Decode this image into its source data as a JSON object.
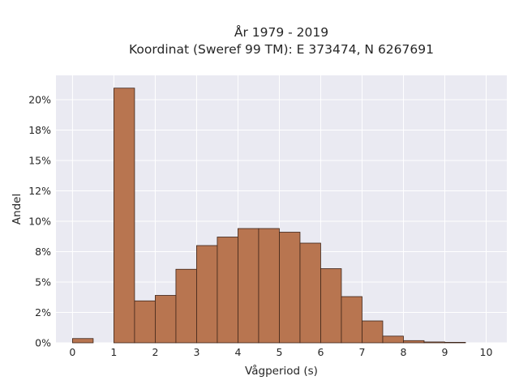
{
  "chart_data": {
    "type": "bar",
    "title_lines": [
      "År 1979 - 2019",
      "Koordinat (Sweref 99 TM): E 373474, N 6267691"
    ],
    "xlabel": "Vågperiod (s)",
    "ylabel": "Andel",
    "x_ticks": [
      "0",
      "1",
      "2",
      "3",
      "4",
      "5",
      "6",
      "7",
      "8",
      "9",
      "10"
    ],
    "y_ticks": [
      "0%",
      "2%",
      "5%",
      "8%",
      "10%",
      "12%",
      "15%",
      "18%",
      "20%"
    ],
    "y_tick_values": [
      0,
      0.025,
      0.05,
      0.075,
      0.1,
      0.125,
      0.15,
      0.175,
      0.2
    ],
    "xlim": [
      -0.4,
      10.5
    ],
    "ylim": [
      0,
      0.22
    ],
    "bin_width": 0.5,
    "bins": [
      {
        "x0": 0.0,
        "value": 0.0035
      },
      {
        "x0": 0.5,
        "value": 0.0
      },
      {
        "x0": 1.0,
        "value": 0.2095
      },
      {
        "x0": 1.5,
        "value": 0.0345
      },
      {
        "x0": 2.0,
        "value": 0.039
      },
      {
        "x0": 2.5,
        "value": 0.0605
      },
      {
        "x0": 3.0,
        "value": 0.08
      },
      {
        "x0": 3.5,
        "value": 0.087
      },
      {
        "x0": 4.0,
        "value": 0.094
      },
      {
        "x0": 4.5,
        "value": 0.094
      },
      {
        "x0": 5.0,
        "value": 0.091
      },
      {
        "x0": 5.5,
        "value": 0.082
      },
      {
        "x0": 6.0,
        "value": 0.061
      },
      {
        "x0": 6.5,
        "value": 0.038
      },
      {
        "x0": 7.0,
        "value": 0.018
      },
      {
        "x0": 7.5,
        "value": 0.0055
      },
      {
        "x0": 8.0,
        "value": 0.0018
      },
      {
        "x0": 8.5,
        "value": 0.0007
      },
      {
        "x0": 9.0,
        "value": 0.0004
      }
    ],
    "grid": true,
    "colors": {
      "bar": "#b87550",
      "bar_edge": "#3d2418",
      "plot_bg": "#eaeaf2",
      "grid": "#ffffff"
    }
  }
}
